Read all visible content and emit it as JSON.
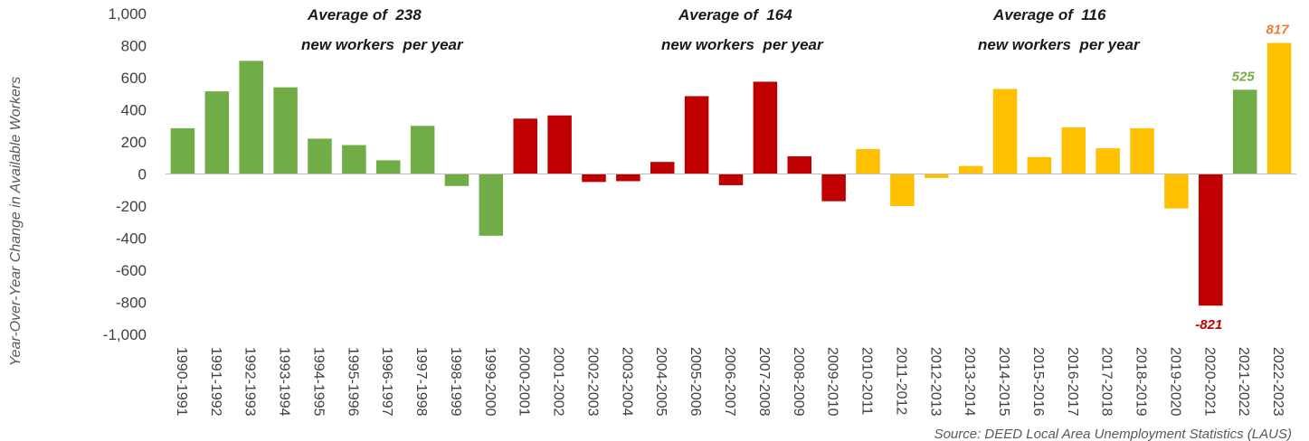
{
  "chart_data": {
    "type": "bar",
    "ylabel": "Year-Over-Year Change in Available Workers",
    "ylim": [
      -1000,
      1000
    ],
    "yticks": [
      1000,
      800,
      600,
      400,
      200,
      0,
      -200,
      -400,
      -600,
      -800,
      -1000
    ],
    "ytick_labels": [
      "1,000",
      "800",
      "600",
      "400",
      "200",
      "0",
      "-200",
      "-400",
      "-600",
      "-800",
      "-1,000"
    ],
    "grid": false,
    "categories": [
      "1990-1991",
      "1991-1992",
      "1992-1993",
      "1993-1994",
      "1994-1995",
      "1995-1996",
      "1996-1997",
      "1997-1998",
      "1998-1999",
      "1999-2000",
      "2000-2001",
      "2001-2002",
      "2002-2003",
      "2003-2004",
      "2004-2005",
      "2005-2006",
      "2006-2007",
      "2007-2008",
      "2008-2009",
      "2009-2010",
      "2010-2011",
      "2011-2012",
      "2012-2013",
      "2013-2014",
      "2014-2015",
      "2015-2016",
      "2016-2017",
      "2017-2018",
      "2018-2019",
      "2019-2020",
      "2020-2021",
      "2021-2022",
      "2022-2023"
    ],
    "values": [
      285,
      515,
      705,
      540,
      220,
      180,
      85,
      300,
      -75,
      -385,
      345,
      365,
      -50,
      -45,
      75,
      485,
      -70,
      575,
      110,
      -170,
      155,
      -200,
      -25,
      50,
      530,
      105,
      290,
      160,
      285,
      -215,
      -821,
      525,
      817
    ],
    "colors": [
      "#70ad47",
      "#70ad47",
      "#70ad47",
      "#70ad47",
      "#70ad47",
      "#70ad47",
      "#70ad47",
      "#70ad47",
      "#70ad47",
      "#70ad47",
      "#c00000",
      "#c00000",
      "#c00000",
      "#c00000",
      "#c00000",
      "#c00000",
      "#c00000",
      "#c00000",
      "#c00000",
      "#c00000",
      "#ffc000",
      "#ffc000",
      "#ffc000",
      "#ffc000",
      "#ffc000",
      "#ffc000",
      "#ffc000",
      "#ffc000",
      "#ffc000",
      "#ffc000",
      "#c00000",
      "#70ad47",
      "#ffc000"
    ],
    "data_labels": [
      {
        "index": 30,
        "text": "-821",
        "color": "#c00000"
      },
      {
        "index": 31,
        "text": "525",
        "color": "#70ad47"
      },
      {
        "index": 32,
        "text": "817",
        "color": "#ed7d31"
      }
    ],
    "annotations": [
      {
        "line1": "Average of  238",
        "line2": "new workers  per year"
      },
      {
        "line1": "Average of  164",
        "line2": "new workers  per year"
      },
      {
        "line1": "Average of  116",
        "line2": "new workers  per year"
      }
    ],
    "source": "Source: DEED Local Area Unemployment Statistics (LAUS)"
  }
}
